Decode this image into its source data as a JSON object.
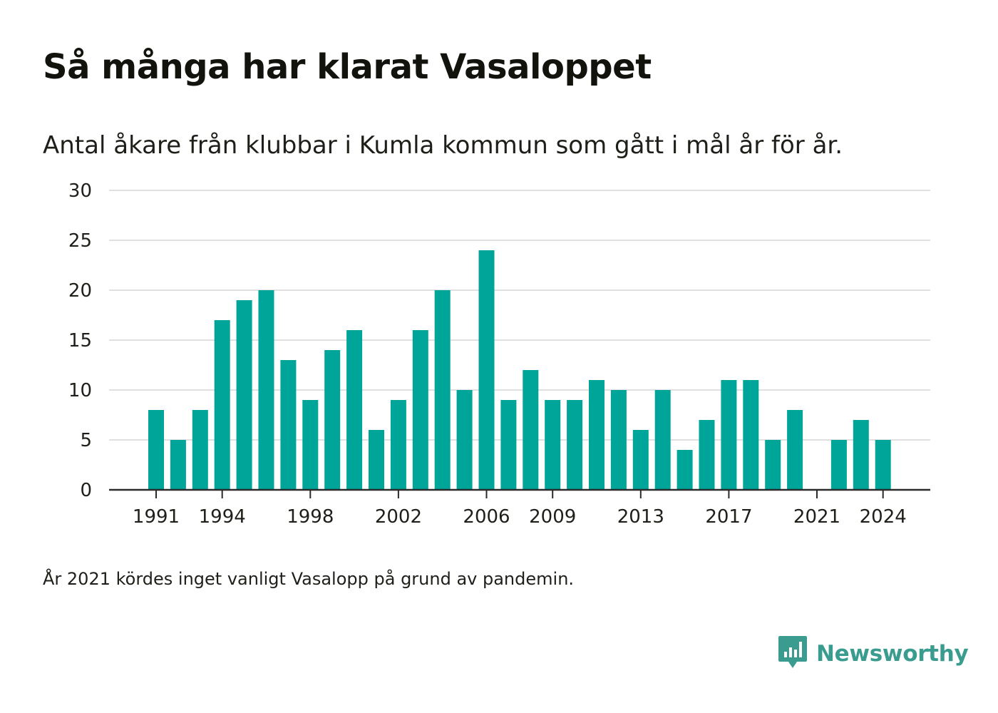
{
  "header": {
    "title": "Så många har klarat Vasaloppet",
    "subtitle": "Antal åkare från klubbar i Kumla kommun som gått i mål år för år."
  },
  "footnote": "År 2021 kördes inget vanligt Vasalopp på grund av pandemin.",
  "brand": {
    "name": "Newsworthy",
    "icon": "newsworthy-chart-logo-icon",
    "color": "#3a9c8f"
  },
  "colors": {
    "bar": "#00a59a",
    "grid": "#e0e0e0",
    "axis": "#2b2b2b",
    "text": "#1f1f1a"
  },
  "chart_data": {
    "type": "bar",
    "x": [
      1991,
      1992,
      1993,
      1994,
      1995,
      1996,
      1997,
      1998,
      1999,
      2000,
      2001,
      2002,
      2003,
      2004,
      2005,
      2006,
      2007,
      2008,
      2009,
      2010,
      2011,
      2012,
      2013,
      2014,
      2015,
      2016,
      2017,
      2018,
      2019,
      2020,
      2021,
      2022,
      2023,
      2024
    ],
    "values": [
      8,
      5,
      8,
      17,
      19,
      20,
      13,
      9,
      14,
      16,
      6,
      9,
      16,
      20,
      10,
      24,
      9,
      12,
      9,
      9,
      11,
      10,
      6,
      10,
      4,
      7,
      11,
      11,
      5,
      8,
      null,
      5,
      7,
      5
    ],
    "x_tick_labels": [
      "1991",
      "1994",
      "1998",
      "2002",
      "2006",
      "2009",
      "2013",
      "2017",
      "2021",
      "2024"
    ],
    "y_ticks": [
      "0",
      "5",
      "10",
      "15",
      "20",
      "25",
      "30"
    ],
    "ylim": [
      0,
      30
    ],
    "xlabel": "",
    "ylabel": "",
    "grid": true
  }
}
